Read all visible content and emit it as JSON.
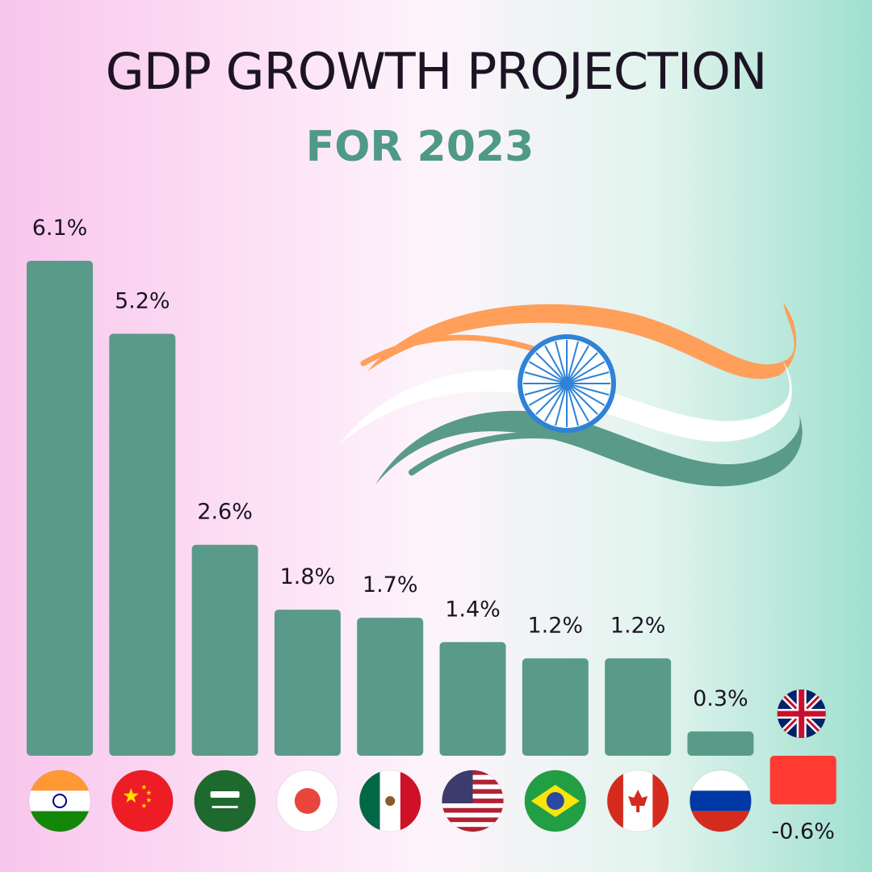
{
  "colors": {
    "bar": "#5a9a88",
    "negative_bar": "#ff3a33",
    "title": "#1c1424",
    "subtitle": "#4e9a86"
  },
  "chart_data": {
    "type": "bar",
    "title": "GDP GROWTH PROJECTION",
    "subtitle": "FOR 2023",
    "categories": [
      "India",
      "China",
      "Saudi Arabia",
      "Japan",
      "Mexico",
      "United States",
      "Brazil",
      "Canada",
      "Russia",
      "United Kingdom"
    ],
    "category_icons": [
      "india-flag",
      "china-flag",
      "saudi-arabia-flag",
      "japan-flag",
      "mexico-flag",
      "usa-flag",
      "brazil-flag",
      "canada-flag",
      "russia-flag",
      "uk-flag"
    ],
    "values": [
      6.1,
      5.2,
      2.6,
      1.8,
      1.7,
      1.4,
      1.2,
      1.2,
      0.3,
      -0.6
    ],
    "value_labels": [
      "6.1%",
      "5.2%",
      "2.6%",
      "1.8%",
      "1.7%",
      "1.4%",
      "1.2%",
      "1.2%",
      "0.3%",
      "-0.6%"
    ],
    "xlabel": "",
    "ylabel": "",
    "ylim": [
      -0.6,
      6.1
    ],
    "grid": false,
    "legend": "none"
  }
}
